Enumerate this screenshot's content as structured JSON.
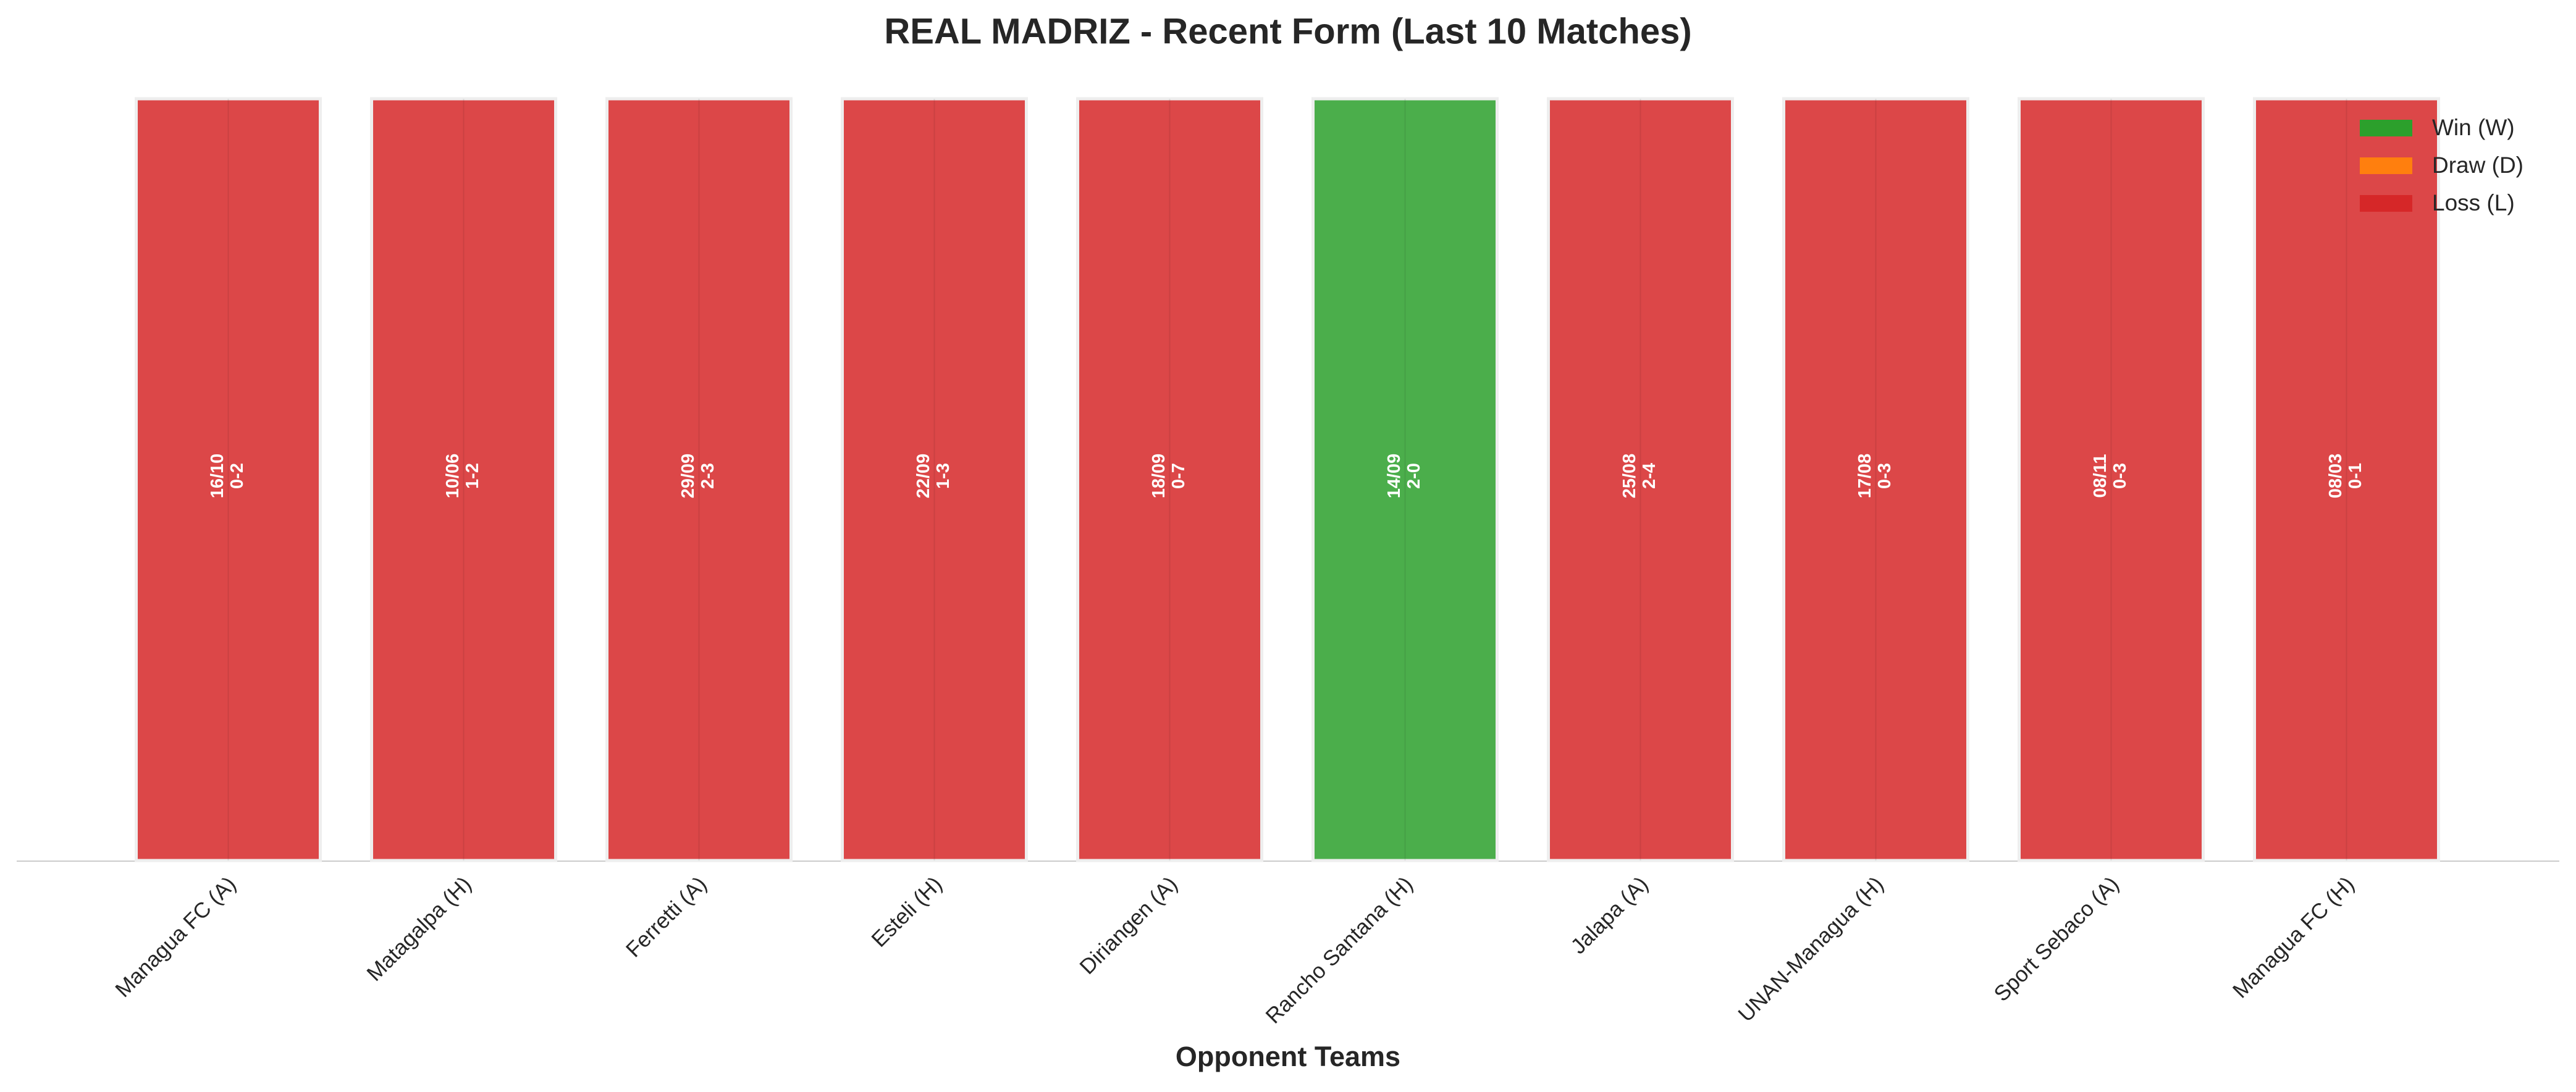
{
  "chart_data": {
    "type": "bar",
    "stacked": true,
    "title": "REAL MADRIZ - Recent Form (Last 10 Matches)",
    "x_label": "Opponent Teams",
    "categories": [
      "Managua FC (A)",
      "Matagalpa (H)",
      "Ferretti (A)",
      "Esteli (H)",
      "Diriangen (A)",
      "Rancho Santana (H)",
      "Jalapa (A)",
      "UNAN-Managua (H)",
      "Sport Sebaco (A)",
      "Managua FC (H)"
    ],
    "dates": [
      "16/10",
      "10/06",
      "29/09",
      "22/09",
      "18/09",
      "14/09",
      "25/08",
      "17/08",
      "08/11",
      "08/03"
    ],
    "scores": [
      "0-2",
      "1-2",
      "2-3",
      "1-3",
      "0-7",
      "2-0",
      "2-4",
      "0-3",
      "0-3",
      "0-1"
    ],
    "series": [
      {
        "name": "Win (W)",
        "color": "#2ca02c",
        "values": [
          null,
          null,
          null,
          null,
          null,
          1,
          null,
          null,
          null,
          null
        ]
      },
      {
        "name": "Draw (D)",
        "color": "#ff7f0e",
        "values": [
          null,
          null,
          null,
          null,
          null,
          null,
          null,
          null,
          null,
          null
        ]
      },
      {
        "name": "Loss (L)",
        "color": "#d62728",
        "values": [
          1,
          1,
          1,
          1,
          1,
          null,
          1,
          1,
          1,
          1
        ]
      }
    ],
    "ylim": [
      0,
      1
    ],
    "legend": "upper right"
  }
}
